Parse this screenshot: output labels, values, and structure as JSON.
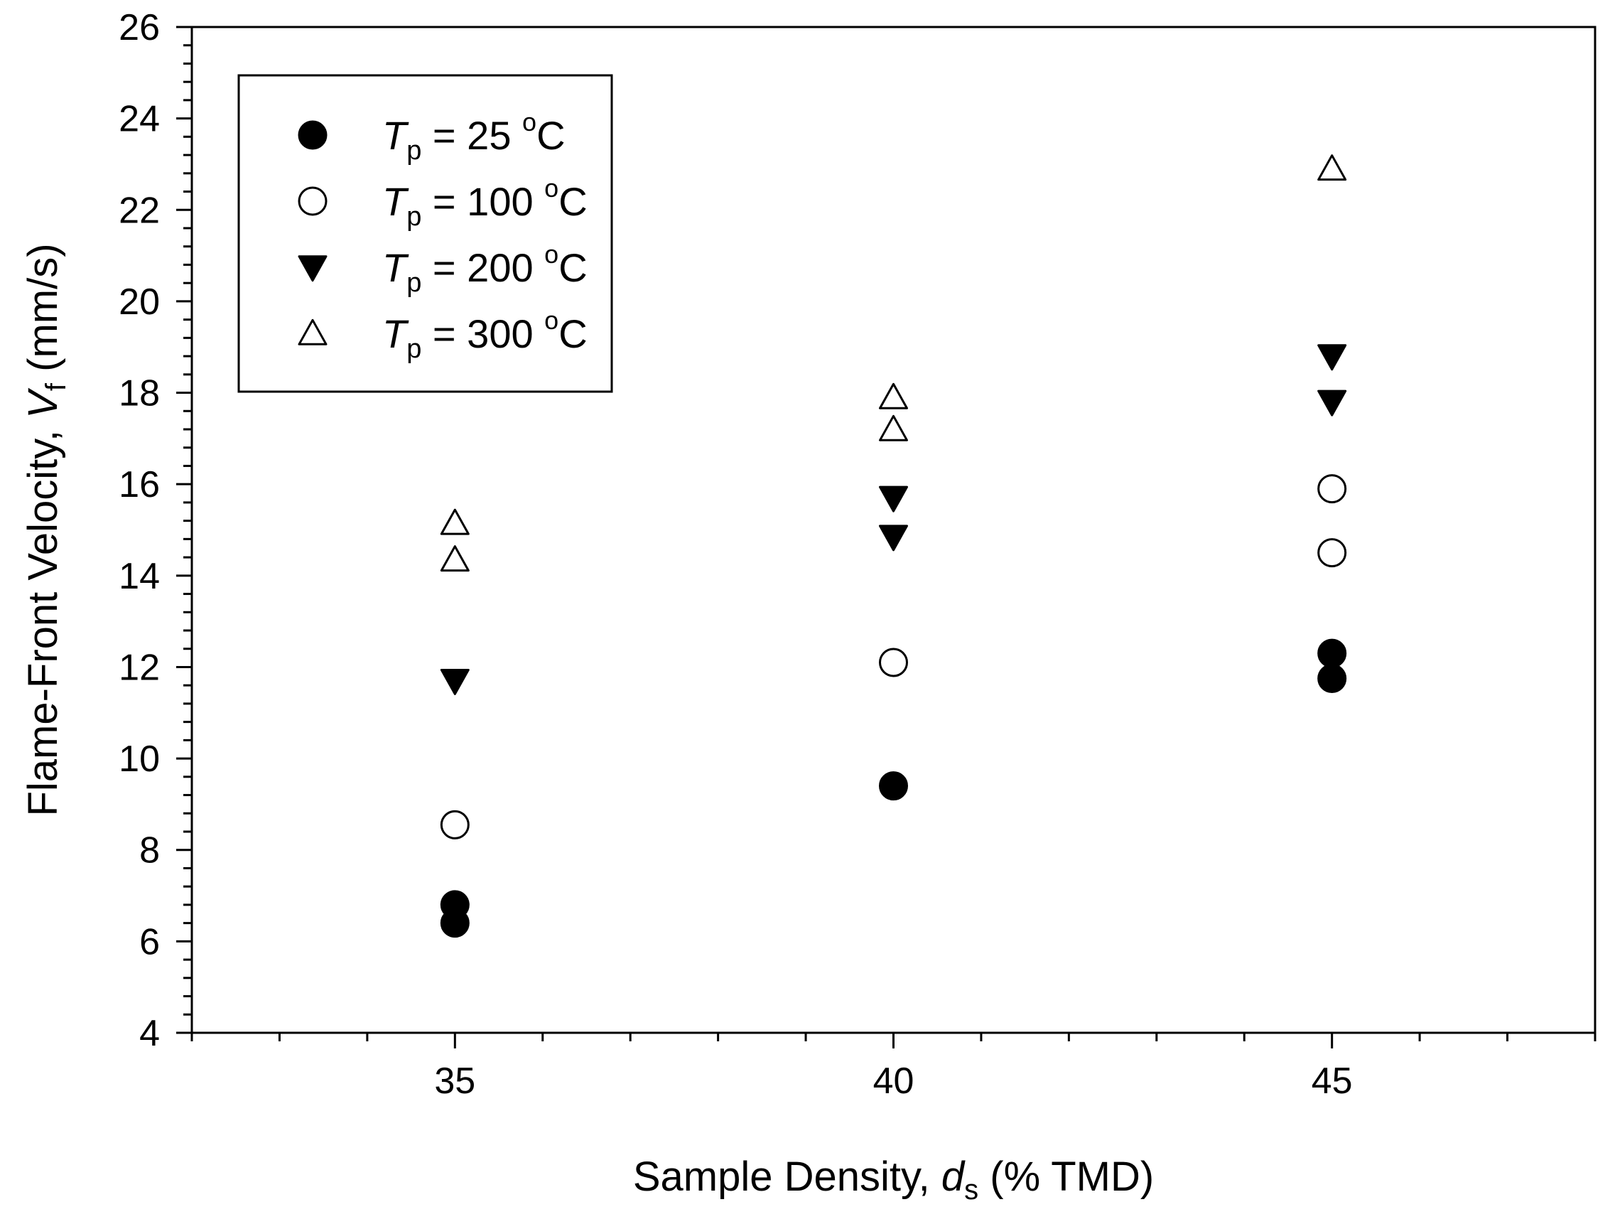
{
  "chart_data": {
    "type": "scatter",
    "title": "",
    "xlabel": {
      "main": "Sample Density, ",
      "symbol": "d",
      "subscript": "s",
      "unit": " (% TMD)"
    },
    "ylabel": {
      "main": "Flame-Front Velocity, ",
      "symbol": "V",
      "subscript": "f",
      "unit": " (mm/s)"
    },
    "xlim": [
      32,
      48
    ],
    "ylim": [
      4,
      26
    ],
    "x_major_ticks": [
      35,
      40,
      45
    ],
    "x_minor_step": 1,
    "y_major_ticks": [
      4,
      6,
      8,
      10,
      12,
      14,
      16,
      18,
      20,
      22,
      24,
      26
    ],
    "y_minor_step": 0.4,
    "grid": false,
    "legend_position": "top-left",
    "series": [
      {
        "name": "Tp = 25 oC",
        "label": {
          "symbol": "T",
          "subscript": "p",
          "text": " = 25 ",
          "superscript": "o",
          "unit": "C"
        },
        "marker": "filled-circle",
        "color": "#000000",
        "points": [
          {
            "x": 35,
            "y": 6.8
          },
          {
            "x": 35,
            "y": 6.4
          },
          {
            "x": 40,
            "y": 9.4
          },
          {
            "x": 45,
            "y": 12.3
          },
          {
            "x": 45,
            "y": 11.75
          }
        ]
      },
      {
        "name": "Tp = 100 oC",
        "label": {
          "symbol": "T",
          "subscript": "p",
          "text": " = 100 ",
          "superscript": "o",
          "unit": "C"
        },
        "marker": "open-circle",
        "color": "#000000",
        "points": [
          {
            "x": 35,
            "y": 8.55
          },
          {
            "x": 40,
            "y": 12.1
          },
          {
            "x": 45,
            "y": 15.9
          },
          {
            "x": 45,
            "y": 14.5
          }
        ]
      },
      {
        "name": "Tp = 200 oC",
        "label": {
          "symbol": "T",
          "subscript": "p",
          "text": " = 200 ",
          "superscript": "o",
          "unit": "C"
        },
        "marker": "filled-down-triangle",
        "color": "#000000",
        "points": [
          {
            "x": 35,
            "y": 11.7
          },
          {
            "x": 40,
            "y": 15.7
          },
          {
            "x": 40,
            "y": 14.85
          },
          {
            "x": 45,
            "y": 18.8
          },
          {
            "x": 45,
            "y": 17.8
          }
        ]
      },
      {
        "name": "Tp = 300 oC",
        "label": {
          "symbol": "T",
          "subscript": "p",
          "text": " = 300 ",
          "superscript": "o",
          "unit": "C"
        },
        "marker": "open-up-triangle",
        "color": "#000000",
        "points": [
          {
            "x": 35,
            "y": 15.15
          },
          {
            "x": 35,
            "y": 14.35
          },
          {
            "x": 40,
            "y": 17.9
          },
          {
            "x": 40,
            "y": 17.2
          },
          {
            "x": 45,
            "y": 22.9
          }
        ]
      }
    ]
  }
}
